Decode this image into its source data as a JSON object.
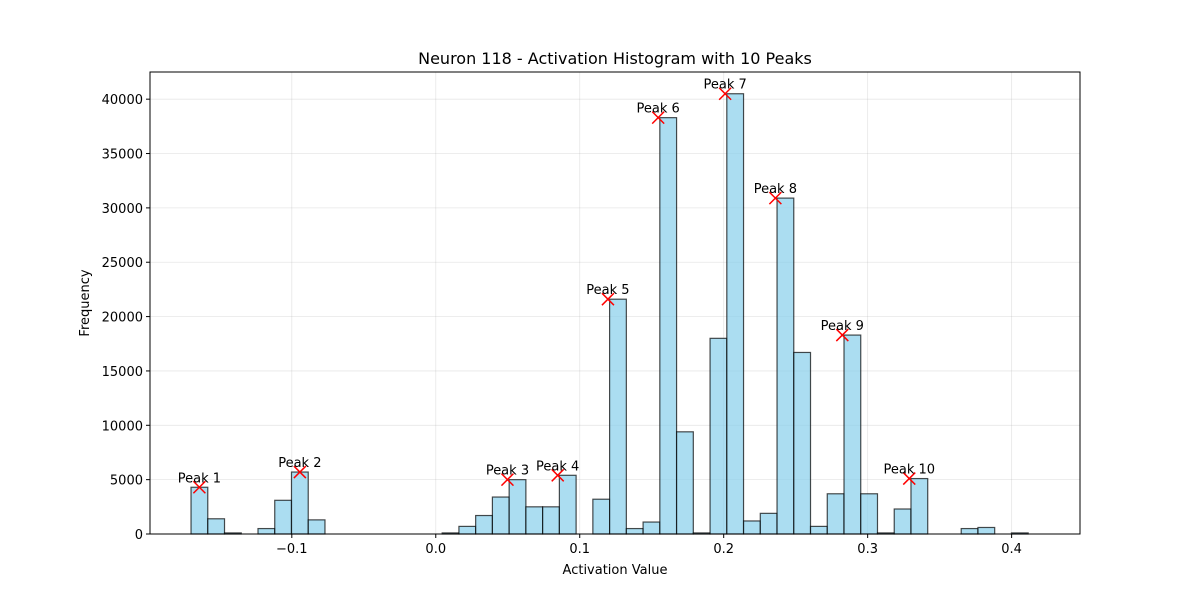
{
  "chart_data": {
    "type": "bar",
    "title": "Neuron 118 - Activation Histogram with 10 Peaks",
    "xlabel": "Activation Value",
    "ylabel": "Frequency",
    "xlim": [
      -0.1985,
      0.4475
    ],
    "ylim": [
      0,
      42500
    ],
    "xticks": [
      -0.1,
      0.0,
      0.1,
      0.2,
      0.3,
      0.4
    ],
    "xtick_labels": [
      "−0.1",
      "0.0",
      "0.1",
      "0.2",
      "0.3",
      "0.4"
    ],
    "yticks": [
      0,
      5000,
      10000,
      15000,
      20000,
      25000,
      30000,
      35000,
      40000
    ],
    "ytick_labels": [
      "0",
      "5000",
      "10000",
      "15000",
      "20000",
      "25000",
      "30000",
      "35000",
      "40000"
    ],
    "grid": true,
    "bar_color": "#87CEEB",
    "marker_color": "#FF0000",
    "bins": {
      "start": -0.17,
      "width": 0.01163,
      "values": [
        4300,
        1400,
        100,
        0,
        500,
        3100,
        5700,
        1300,
        0,
        0,
        0,
        0,
        0,
        0,
        0,
        100,
        700,
        1700,
        3400,
        5000,
        2500,
        2500,
        5400,
        0,
        3200,
        21600,
        500,
        1100,
        38300,
        9400,
        100,
        18000,
        40500,
        1200,
        1900,
        30900,
        16700,
        700,
        3700,
        18300,
        3700,
        100,
        2300,
        5100,
        0,
        0,
        500,
        600,
        0,
        100
      ]
    },
    "peaks": [
      {
        "label": "Peak 1",
        "x": -0.1642,
        "y": 4300
      },
      {
        "label": "Peak 2",
        "x": -0.0944,
        "y": 5700
      },
      {
        "label": "Peak 3",
        "x": 0.0498,
        "y": 5000
      },
      {
        "label": "Peak 4",
        "x": 0.0847,
        "y": 5400
      },
      {
        "label": "Peak 5",
        "x": 0.1196,
        "y": 21600
      },
      {
        "label": "Peak 6",
        "x": 0.1545,
        "y": 38300
      },
      {
        "label": "Peak 7",
        "x": 0.201,
        "y": 40500
      },
      {
        "label": "Peak 8",
        "x": 0.2359,
        "y": 30900
      },
      {
        "label": "Peak 9",
        "x": 0.2824,
        "y": 18300
      },
      {
        "label": "Peak 10",
        "x": 0.3289,
        "y": 5100
      }
    ]
  }
}
